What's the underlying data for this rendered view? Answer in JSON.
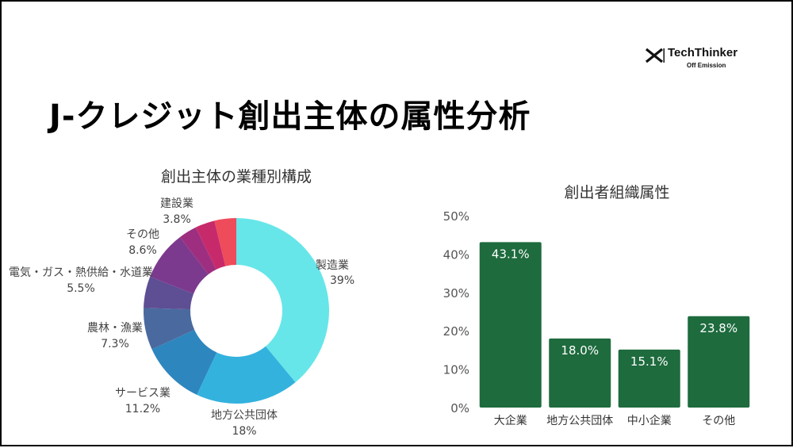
{
  "brand": {
    "name": "TechThinker",
    "sub": "Off Emission"
  },
  "title": "J-クレジット創出主体の属性分析",
  "chart_data": [
    {
      "type": "pie",
      "title": "創出主体の業種別構成",
      "start": "top",
      "slices": [
        {
          "label": "製造業",
          "value_label": "39%",
          "value": 39.0,
          "color": "#67E6E9"
        },
        {
          "label": "地方公共団体",
          "value_label": "18%",
          "value": 18.0,
          "color": "#34B2DE"
        },
        {
          "label": "サービス業",
          "value_label": "11.2%",
          "value": 11.2,
          "color": "#2E86BE"
        },
        {
          "label": "農林・漁業",
          "value_label": "7.3%",
          "value": 7.3,
          "color": "#4A6A9F"
        },
        {
          "label": "電気・ガス・熱供給・水道業",
          "value_label": "5.5%",
          "value": 5.5,
          "color": "#5E4E93"
        },
        {
          "label": "その他",
          "value_label": "8.6%",
          "value": 8.6,
          "color": "#7C3A8E"
        },
        {
          "label": "",
          "value_label": "",
          "value": 3.2,
          "color": "#9E2F80"
        },
        {
          "label": "",
          "value_label": "",
          "value": 3.4,
          "color": "#C72A6B"
        },
        {
          "label": "建設業",
          "value_label": "3.8%",
          "value": 3.8,
          "color": "#EE4B5B"
        }
      ]
    },
    {
      "type": "bar",
      "title": "創出者組織属性",
      "categories": [
        "大企業",
        "地方公共団体",
        "中小企業",
        "その他"
      ],
      "values": [
        43.1,
        18.0,
        15.1,
        23.8
      ],
      "data_labels": [
        "43.1%",
        "18.0%",
        "15.1%",
        "23.8%"
      ],
      "ylim": [
        0,
        50
      ],
      "y_ticks": [
        0,
        10,
        20,
        30,
        40,
        50
      ],
      "y_tick_labels": [
        "0%",
        "10%",
        "20%",
        "30%",
        "40%",
        "50%"
      ],
      "bar_color": "#1E6B3E",
      "grid": false
    }
  ]
}
